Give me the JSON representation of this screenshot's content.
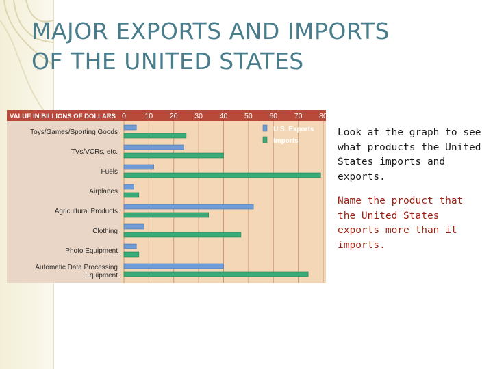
{
  "slide": {
    "title_line1": "MAJOR EXPORTS AND IMPORTS",
    "title_line2": "OF THE UNITED STATES",
    "paragraph1": "Look at the graph to see what products the United States imports and exports.",
    "paragraph2": "Name the product that the United States exports more than it imports."
  },
  "colors": {
    "exports": "#6f9bd6",
    "imports": "#3aaa78",
    "chart_bg": "#f4d7b6",
    "label_bg": "#ead6c6",
    "grid": "#c99a7c",
    "axis_header_bg": "#b84a3a",
    "title_color": "#4a7d8c",
    "question_color": "#9b1f12"
  },
  "chart_data": {
    "type": "bar",
    "orientation": "horizontal",
    "header_label": "VALUE IN BILLIONS OF DOLLARS",
    "categories": [
      "Toys/Games/Sporting Goods",
      "TVs/VCRs, etc.",
      "Fuels",
      "Airplanes",
      "Agricultural Products",
      "Clothing",
      "Photo Equipment",
      "Automatic Data Processing Equipment"
    ],
    "series": [
      {
        "name": "U.S. Exports",
        "values": [
          5,
          24,
          12,
          4,
          52,
          8,
          5,
          40
        ]
      },
      {
        "name": "Imports",
        "values": [
          25,
          40,
          79,
          6,
          34,
          47,
          6,
          74
        ]
      }
    ],
    "xticks": [
      "0",
      "10",
      "20",
      "30",
      "40",
      "50",
      "60",
      "70",
      "80"
    ],
    "xlim": [
      0,
      80
    ],
    "grid": true,
    "legend_position": "top-right"
  }
}
